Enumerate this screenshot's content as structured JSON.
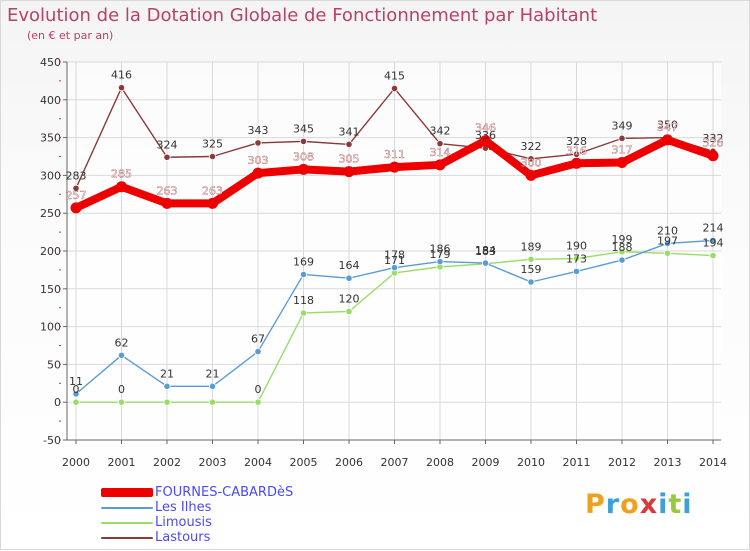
{
  "chart_data": {
    "type": "line",
    "title": "Evolution de la Dotation Globale de Fonctionnement par Habitant",
    "subtitle": "(en € et par an)",
    "xlabel": "",
    "ylabel": "",
    "ylim": [
      -50,
      450
    ],
    "yticks": [
      "-50",
      "0",
      "50",
      "100",
      "150",
      "200",
      "250",
      "300",
      "350",
      "400",
      "450"
    ],
    "categories": [
      "2000",
      "2001",
      "2002",
      "2003",
      "2004",
      "2005",
      "2006",
      "2007",
      "2008",
      "2009",
      "2010",
      "2011",
      "2012",
      "2013",
      "2014"
    ],
    "grid": true,
    "legend_position": "bottom-left",
    "series": [
      {
        "name": "FOURNES-CABARDèS",
        "color": "#ee0000",
        "label_color": "#ffffff",
        "values": [
          257,
          285,
          263,
          263,
          303,
          308,
          305,
          311,
          314,
          346,
          300,
          316,
          317,
          347,
          326
        ],
        "labels": [
          "257",
          "285",
          "263",
          "263",
          "303",
          "308",
          "305",
          "311",
          "314",
          "346",
          "300",
          "316",
          "317",
          "347",
          "326"
        ]
      },
      {
        "name": "Les Ilhes",
        "color": "#5b9bd5",
        "label_color": "#333333",
        "values": [
          11,
          62,
          21,
          21,
          67,
          169,
          164,
          178,
          186,
          184,
          159,
          173,
          188,
          210,
          214
        ],
        "labels": [
          "11",
          "62",
          "21",
          "21",
          "67",
          "169",
          "164",
          "178",
          "186",
          "184",
          "159",
          "173",
          "188",
          "210",
          "214"
        ]
      },
      {
        "name": "Limousis",
        "color": "#99dd66",
        "label_color": "#333333",
        "values": [
          0,
          0,
          0,
          0,
          0,
          118,
          120,
          171,
          179,
          183,
          189,
          190,
          199,
          197,
          194
        ],
        "labels": [
          "0",
          "0",
          "",
          "",
          "0",
          "118",
          "120",
          "171",
          "179",
          "183",
          "189",
          "190",
          "199",
          "197",
          "194"
        ]
      },
      {
        "name": "Lastours",
        "color": "#8b3a3a",
        "label_color": "#333333",
        "values": [
          283,
          416,
          324,
          325,
          343,
          345,
          341,
          415,
          342,
          336,
          322,
          328,
          349,
          350,
          332
        ],
        "labels": [
          "283",
          "416",
          "324",
          "325",
          "343",
          "345",
          "341",
          "415",
          "342",
          "336",
          "322",
          "328",
          "349",
          "350",
          "332"
        ]
      }
    ]
  },
  "legend": {
    "items": [
      {
        "label": "FOURNES-CABARDèS",
        "color": "#ee0000",
        "text_color": "#4a4aee"
      },
      {
        "label": "Les Ilhes",
        "color": "#5b9bd5",
        "text_color": "#4a4aee"
      },
      {
        "label": "Limousis",
        "color": "#99dd66",
        "text_color": "#4a4aee"
      },
      {
        "label": "Lastours",
        "color": "#8b3a3a",
        "text_color": "#4a4aee"
      }
    ]
  },
  "logo": {
    "text": "Proxiti",
    "colors": [
      "#f0a020",
      "#3fa0d8",
      "#f0a020",
      "#d83a3a",
      "#3fa0d8",
      "#9bc83a",
      "#3fa0d8"
    ]
  }
}
